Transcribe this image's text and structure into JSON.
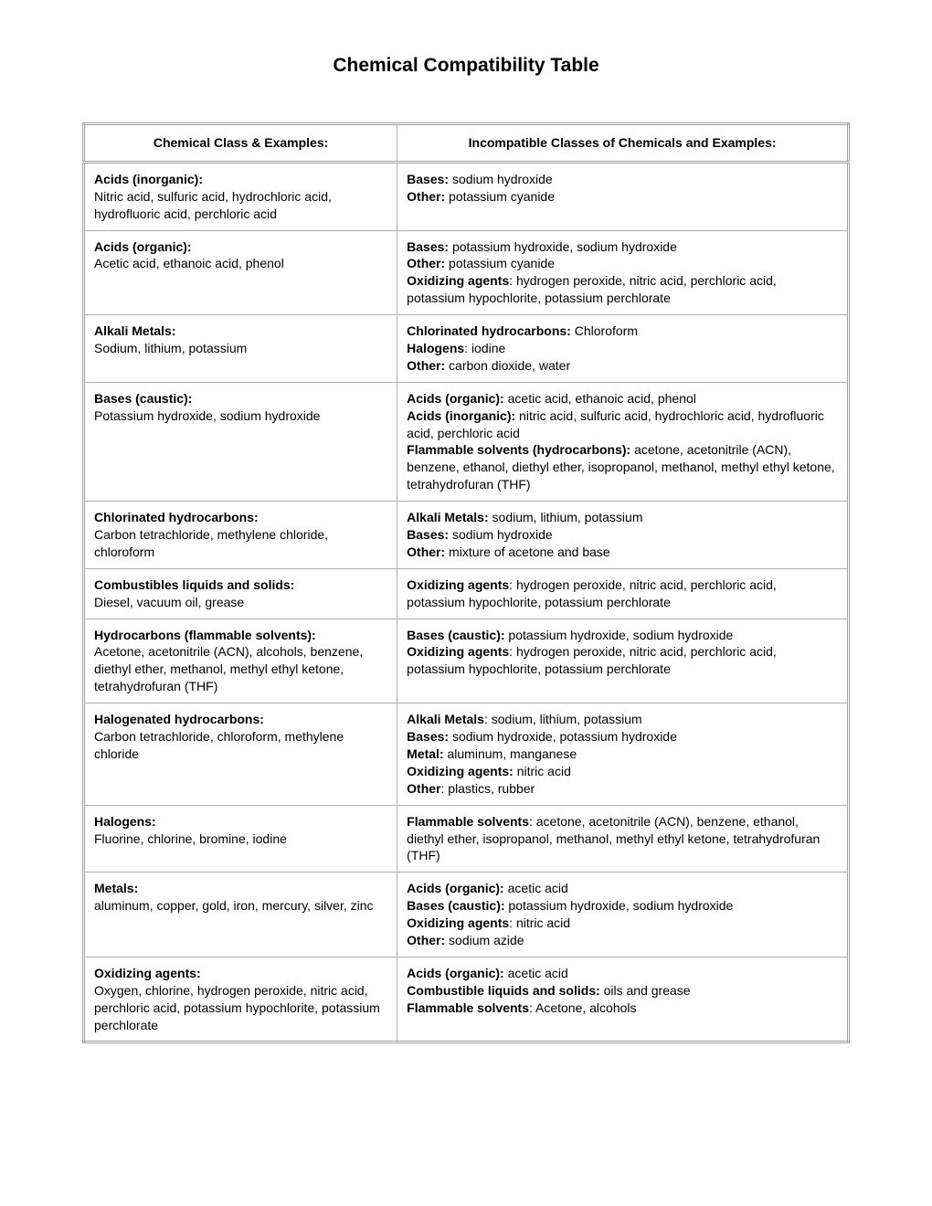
{
  "document": {
    "title": "Chemical Compatibility Table",
    "columns": [
      "Chemical Class & Examples:",
      "Incompatible Classes of Chemicals and Examples:"
    ],
    "rows": [
      {
        "class_name": "Acids (inorganic):",
        "class_examples": "Nitric acid, sulfuric acid, hydrochloric acid, hydrofluoric acid, perchloric acid",
        "incompatible": [
          {
            "label": "Bases:",
            "text": " sodium hydroxide"
          },
          {
            "label": "Other:",
            "text": " potassium cyanide"
          }
        ]
      },
      {
        "class_name": "Acids (organic):",
        "class_examples": "Acetic acid, ethanoic acid, phenol",
        "incompatible": [
          {
            "label": "Bases:",
            "text": " potassium hydroxide, sodium hydroxide"
          },
          {
            "label": "Other:",
            "text": " potassium cyanide"
          },
          {
            "label": "Oxidizing agents",
            "text": ": hydrogen peroxide, nitric acid, perchloric acid, potassium hypochlorite, potassium perchlorate"
          }
        ]
      },
      {
        "class_name": "Alkali Metals:",
        "class_examples": "Sodium, lithium, potassium",
        "incompatible": [
          {
            "label": "Chlorinated hydrocarbons:",
            "text": " Chloroform"
          },
          {
            "label": "Halogens",
            "text": ": iodine"
          },
          {
            "label": "Other:",
            "text": " carbon dioxide, water"
          }
        ]
      },
      {
        "class_name": "Bases (caustic):",
        "class_examples": "Potassium hydroxide, sodium hydroxide",
        "incompatible": [
          {
            "label": "Acids (organic):",
            "text": " acetic acid, ethanoic acid, phenol"
          },
          {
            "label": "Acids (inorganic):",
            "text": " nitric acid, sulfuric acid, hydrochloric acid, hydrofluoric acid, perchloric acid"
          },
          {
            "label": "Flammable solvents (hydrocarbons):",
            "text": " acetone, acetonitrile (ACN), benzene, ethanol, diethyl ether, isopropanol, methanol, methyl ethyl ketone, tetrahydrofuran (THF)"
          }
        ]
      },
      {
        "class_name": "Chlorinated hydrocarbons:",
        "class_examples": "Carbon tetrachloride, methylene chloride, chloroform",
        "incompatible": [
          {
            "label": "Alkali Metals:",
            "text": " sodium, lithium, potassium"
          },
          {
            "label": "Bases:",
            "text": " sodium hydroxide"
          },
          {
            "label": "Other:",
            "text": " mixture of acetone and base"
          }
        ]
      },
      {
        "class_name": "Combustibles liquids and solids:",
        "class_examples": "Diesel, vacuum oil, grease",
        "incompatible": [
          {
            "label": "Oxidizing agents",
            "text": ": hydrogen peroxide, nitric acid, perchloric acid, potassium hypochlorite, potassium perchlorate"
          }
        ]
      },
      {
        "class_name": "Hydrocarbons (flammable solvents):",
        "class_examples": "Acetone, acetonitrile (ACN), alcohols, benzene, diethyl ether, methanol, methyl ethyl ketone, tetrahydrofuran (THF)",
        "incompatible": [
          {
            "label": "Bases (caustic):",
            "text": " potassium hydroxide, sodium hydroxide"
          },
          {
            "label": "Oxidizing agents",
            "text": ": hydrogen peroxide, nitric acid, perchloric acid, potassium hypochlorite, potassium perchlorate"
          }
        ]
      },
      {
        "class_name": "Halogenated hydrocarbons:",
        "class_examples": "Carbon tetrachloride, chloroform, methylene chloride",
        "incompatible": [
          {
            "label": "Alkali Metals",
            "text": ": sodium, lithium, potassium"
          },
          {
            "label": "Bases:",
            "text": " sodium hydroxide, potassium hydroxide"
          },
          {
            "label": "Metal:",
            "text": " aluminum, manganese"
          },
          {
            "label": "Oxidizing agents:",
            "text": " nitric acid"
          },
          {
            "label": "Other",
            "text": ": plastics, rubber"
          }
        ]
      },
      {
        "class_name": "Halogens:",
        "class_examples": "Fluorine, chlorine, bromine, iodine",
        "incompatible": [
          {
            "label": "Flammable solvents",
            "text": ": acetone, acetonitrile (ACN), benzene, ethanol, diethyl ether, isopropanol, methanol, methyl ethyl ketone, tetrahydrofuran (THF)"
          }
        ]
      },
      {
        "class_name": "Metals:",
        "class_examples": "aluminum, copper, gold, iron, mercury, silver, zinc",
        "incompatible": [
          {
            "label": "Acids (organic):",
            "text": " acetic acid"
          },
          {
            "label": "Bases (caustic):",
            "text": " potassium hydroxide, sodium hydroxide"
          },
          {
            "label": "Oxidizing agents",
            "text": ": nitric acid"
          },
          {
            "label": "Other:",
            "text": " sodium azide"
          }
        ]
      },
      {
        "class_name": "Oxidizing agents:",
        "class_examples": "Oxygen, chlorine, hydrogen peroxide, nitric acid, perchloric acid, potassium hypochlorite, potassium perchlorate",
        "incompatible": [
          {
            "label": "Acids (organic):",
            "text": " acetic acid"
          },
          {
            "label": "Combustible liquids and solids:",
            "text": " oils and grease"
          },
          {
            "label": "Flammable solvents",
            "text": ": Acetone, alcohols"
          }
        ]
      }
    ]
  }
}
